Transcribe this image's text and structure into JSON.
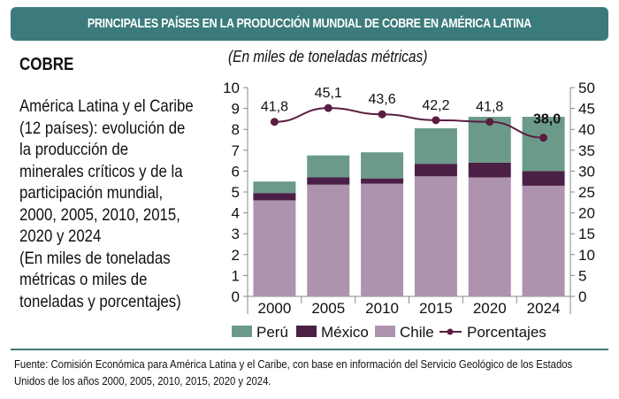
{
  "header": {
    "title": "PRINCIPALES PAÍSES EN LA PRODUCCIÓN MUNDIAL DE COBRE EN AMÉRICA LATINA"
  },
  "side": {
    "title": "COBRE",
    "description": "América Latina y el Caribe\n(12 países): evolución de\nla producción de\nminerales críticos y de la\nparticipación mundial,\n2000, 2005, 2010, 2015,\n2020 y 2024\n(En miles de toneladas\nmétricas o miles de\ntoneladas y porcentajes)"
  },
  "source": "Fuente: Comisión Económica para América Latina y el Caribe, con base en información del Servicio Geológico de los Estados Unidos de los años 2000, 2005, 2010, 2015, 2020 y 2024.",
  "colors": {
    "header": "#3b7b7b",
    "peru": "#6b9a8b",
    "mexico": "#4b1f46",
    "chile": "#ad93ad",
    "line": "#5a1d40"
  },
  "chart_data": {
    "type": "bar",
    "stacked": true,
    "title": "PRINCIPALES PAÍSES EN LA PRODUCCIÓN MUNDIAL DE COBRE EN AMÉRICA LATINA",
    "subtitle": "(En miles de toneladas métricas)",
    "categories": [
      "2000",
      "2005",
      "2010",
      "2015",
      "2020",
      "2024"
    ],
    "series": [
      {
        "name": "Chile",
        "type": "bar",
        "values": [
          4.6,
          5.35,
          5.4,
          5.75,
          5.7,
          5.3
        ]
      },
      {
        "name": "México",
        "type": "bar",
        "values": [
          0.35,
          0.35,
          0.25,
          0.6,
          0.7,
          0.7
        ]
      },
      {
        "name": "Perú",
        "type": "bar",
        "values": [
          0.55,
          1.05,
          1.25,
          1.7,
          2.2,
          2.6
        ]
      },
      {
        "name": "Porcentajes",
        "type": "line",
        "axis": "right",
        "values": [
          41.8,
          45.1,
          43.6,
          42.2,
          41.8,
          38.0
        ],
        "labels": [
          "41,8",
          "45,1",
          "43,6",
          "42,2",
          "41,8",
          "38,0"
        ]
      }
    ],
    "legend": [
      "Perú",
      "México",
      "Chile",
      "Porcentajes"
    ],
    "legend_position": "bottom",
    "ylim": [
      0,
      10
    ],
    "yticks": [
      0,
      1,
      2,
      3,
      4,
      5,
      6,
      7,
      8,
      9,
      10
    ],
    "y2lim": [
      0,
      50
    ],
    "y2ticks": [
      0,
      5,
      10,
      15,
      20,
      25,
      30,
      35,
      40,
      45,
      50
    ],
    "xlabel": "",
    "ylabel": "",
    "grid": false
  }
}
